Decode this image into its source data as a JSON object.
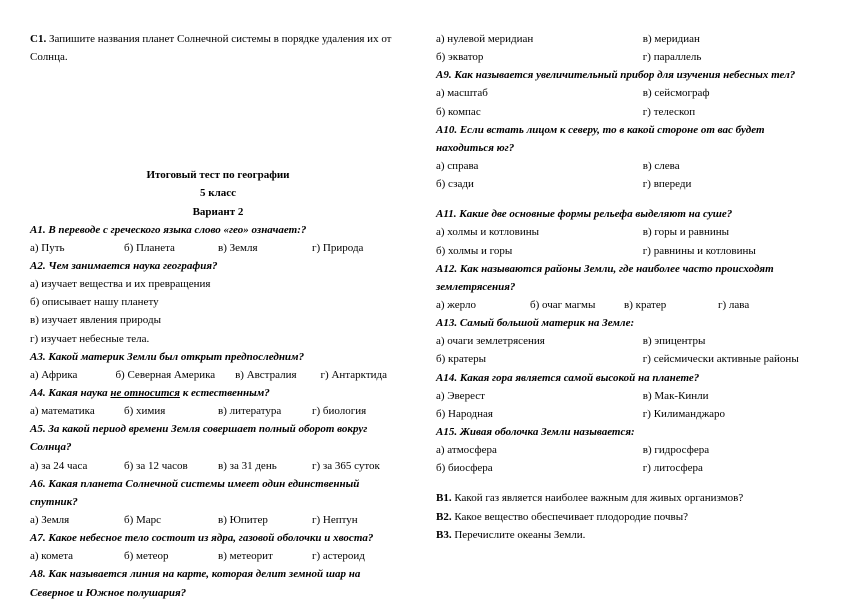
{
  "left": {
    "c1_prefix": "С1. ",
    "c1": "Запишите названия планет Солнечной системы в порядке удаления их от Солнца.",
    "header1": "Итоговый тест по географии",
    "header2": "5 класс",
    "header3": "Вариант 2",
    "a1": "А1. В переводе с греческого языка слово «гео» означает:?",
    "a1_a": "а) Путь",
    "a1_b": "б) Планета",
    "a1_v": "в) Земля",
    "a1_g": "г) Природа",
    "a2": "А2. Чем занимается наука география?",
    "a2_a": "а) изучает вещества и их превращения",
    "a2_b": "б) описывает нашу планету",
    "a2_v": "в) изучает явления природы",
    "a2_g": "г) изучает небесные тела.",
    "a3": "А3. Какой материк Земли был открыт предпоследним?",
    "a3_a": "а) Африка",
    "a3_b": "б) Северная  Америка",
    "a3_v": "в) Австралия",
    "a3_g": "г) Антарктида",
    "a4_pre": "А4. Какая наука ",
    "a4_u": "не относится",
    "a4_post": " к естественным?",
    "a4_a": "а) математика",
    "a4_b": "б) химия",
    "a4_v": "в) литература",
    "a4_g": "г) биология",
    "a5": "А5. За какой период времени Земля совершает полный оборот вокруг Солнца?",
    "a5_a": "а) за 24 часа",
    "a5_b": "б) за 12 часов",
    "a5_v": "в) за 31 день",
    "a5_g": "г) за 365 суток",
    "a6": "А6. Какая планета Солнечной системы имеет один единственный спутник?",
    "a6_a": "а) Земля",
    "a6_b": "б) Марс",
    "a6_v": "в) Юпитер",
    "a6_g": "г) Нептун",
    "a7": "А7. Какое небесное тело состоит из ядра, газовой оболочки и хвоста?",
    "a7_a": "а) комета",
    "a7_b": "б) метеор",
    "a7_v": "в) метеорит",
    "a7_g": "г) астероид",
    "a8": "А8. Как называется линия на карте, которая делит земной шар на Северное и Южное полушария?"
  },
  "right": {
    "a8_a": "а) нулевой меридиан",
    "a8_v": "в) меридиан",
    "a8_b": "б) экватор",
    "a8_g": "г) параллель",
    "a9": "А9. Как называется увеличительный прибор для изучения небесных тел?",
    "a9_a": "а) масштаб",
    "a9_v": "в) сейсмограф",
    "a9_b": "б) компас",
    "a9_g": "г) телескоп",
    "a10": "А10. Если встать лицом к северу, то в какой стороне от вас будет находиться юг?",
    "a10_a": "а) справа",
    "a10_v": "в) слева",
    "a10_b": "б) сзади",
    "a10_g": "г) впереди",
    "a11": "А11. Какие две основные формы рельефа выделяют на суше?",
    "a11_a": "а) холмы и котловины",
    "a11_v": "в) горы и равнины",
    "a11_b": "б) холмы и горы",
    "a11_g": "г) равнины и котловины",
    "a12": "А12. Как называются районы Земли, где наиболее часто происходят землетрясения?",
    "a12_a": "а) жерло",
    "a12_b": "б) очаг магмы",
    "a12_v": "в) кратер",
    "a12_g": "г) лава",
    "a13": "А13. Самый большой материк на Земле:",
    "a13_a": "а) очаги землетрясения",
    "a13_v": "в) эпицентры",
    "a13_b": "б) кратеры",
    "a13_g": "г) сейсмически активные районы",
    "a14": "А14. Какая гора является самой высокой на планете?",
    "a14_a": "а) Эверест",
    "a14_v": "в) Мак-Кинли",
    "a14_b": "б) Народная",
    "a14_g": "г) Килиманджаро",
    "a15": "А15. Живая оболочка Земли называется:",
    "a15_a": "а) атмосфера",
    "a15_v": "в) гидросфера",
    "a15_b": "б) биосфера",
    "a15_g": "г) литосфера",
    "b1_prefix": "В1. ",
    "b1": "Какой газ является наиболее важным для живых организмов?",
    "b2_prefix": "В2. ",
    "b2": "Какое вещество обеспечивает плодородие почвы?",
    "b3_prefix": "В3. ",
    "b3": "Перечислите океаны Земли."
  }
}
